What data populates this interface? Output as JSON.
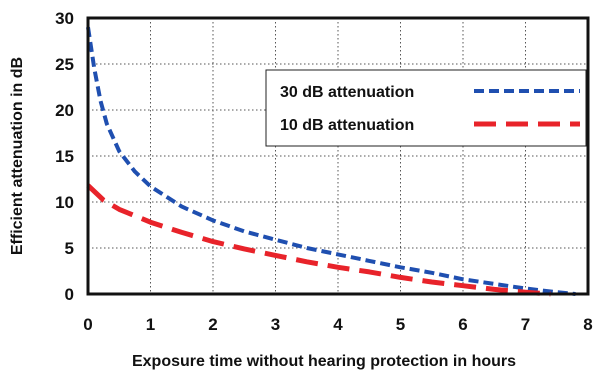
{
  "chart_data": {
    "type": "line",
    "title": "",
    "xlabel": "Exposure time without hearing protection in hours",
    "ylabel": "Efficient attenuation in dB",
    "xlim": [
      0,
      8
    ],
    "ylim": [
      0,
      30
    ],
    "x_ticks": [
      "0",
      "1",
      "2",
      "3",
      "4",
      "5",
      "6",
      "7",
      "8"
    ],
    "y_ticks": [
      "0",
      "5",
      "10",
      "15",
      "20",
      "25",
      "30"
    ],
    "grid": true,
    "legend_position": "top-right",
    "series": [
      {
        "name": "30 dB attenuation",
        "color": "#1f4fb0",
        "dash": "short-dash",
        "x": [
          0,
          0.1,
          0.2,
          0.3,
          0.5,
          0.75,
          1,
          1.5,
          2,
          2.5,
          3,
          3.5,
          4,
          4.5,
          5,
          5.5,
          6,
          6.5,
          7,
          7.5,
          7.8
        ],
        "y": [
          29,
          24.5,
          21,
          18.5,
          15.5,
          13.3,
          11.7,
          9.5,
          8,
          6.8,
          5.9,
          5,
          4.3,
          3.6,
          2.9,
          2.3,
          1.6,
          1.1,
          0.6,
          0.2,
          0
        ]
      },
      {
        "name": "10 dB attenuation",
        "color": "#e8232a",
        "dash": "long-dash",
        "x": [
          0,
          0.25,
          0.5,
          1,
          1.5,
          2,
          2.5,
          3,
          3.5,
          4,
          4.5,
          5,
          5.5,
          6,
          6.5,
          7,
          7.4
        ],
        "y": [
          11.8,
          10.2,
          9.2,
          7.8,
          6.7,
          5.7,
          4.9,
          4.2,
          3.5,
          2.9,
          2.4,
          1.8,
          1.3,
          0.9,
          0.5,
          0.2,
          0
        ]
      }
    ]
  }
}
